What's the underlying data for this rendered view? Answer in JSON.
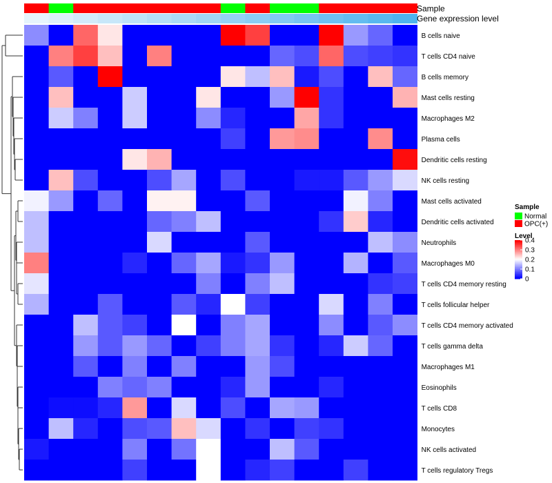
{
  "chart_data": {
    "type": "heatmap",
    "annotation_titles": {
      "sample": "Sample",
      "expression": "Gene expression level"
    },
    "sample_groups": [
      "OPC(+)",
      "Normal",
      "OPC(+)",
      "OPC(+)",
      "OPC(+)",
      "OPC(+)",
      "OPC(+)",
      "OPC(+)",
      "Normal",
      "OPC(+)",
      "Normal",
      "Normal",
      "OPC(+)",
      "OPC(+)",
      "OPC(+)",
      "OPC(+)"
    ],
    "expression_levels": [
      0.05,
      0.1,
      0.15,
      0.2,
      0.25,
      0.3,
      0.35,
      0.4,
      0.45,
      0.5,
      0.55,
      0.6,
      0.65,
      0.7,
      0.75,
      0.8
    ],
    "rows": [
      "B cells naive",
      "T cells CD4 naive",
      "B cells memory",
      "Mast cells resting",
      "Macrophages M2",
      "Plasma cells",
      "Dendritic cells resting",
      "NK cells resting",
      "Mast cells activated",
      "Dendritic cells activated",
      "Neutrophils",
      "Macrophages M0",
      "T cells CD4 memory resting",
      "T cells follicular helper",
      "T cells CD4 memory activated",
      "T cells gamma delta",
      "Macrophages M1",
      "Eosinophils",
      "T cells CD8",
      "Monocytes",
      "NK cells activated",
      "T cells regulatory  Tregs"
    ],
    "values": [
      [
        0.11,
        0.0,
        0.32,
        0.22,
        0.0,
        0.0,
        0.0,
        0.0,
        0.4,
        0.35,
        0.0,
        0.0,
        0.4,
        0.12,
        0.08,
        0.0
      ],
      [
        0.0,
        0.3,
        0.35,
        0.25,
        0.0,
        0.3,
        0.0,
        0.0,
        0.0,
        0.0,
        0.08,
        0.06,
        0.32,
        0.06,
        0.05,
        0.04
      ],
      [
        0.0,
        0.07,
        0.0,
        0.4,
        0.0,
        0.0,
        0.0,
        0.0,
        0.22,
        0.15,
        0.25,
        0.02,
        0.06,
        0.0,
        0.25,
        0.08
      ],
      [
        0.0,
        0.25,
        0.0,
        0.0,
        0.16,
        0.0,
        0.0,
        0.22,
        0.0,
        0.0,
        0.12,
        0.4,
        0.04,
        0.0,
        0.0,
        0.26
      ],
      [
        0.0,
        0.16,
        0.1,
        0.0,
        0.16,
        0.0,
        0.0,
        0.11,
        0.03,
        0.0,
        0.0,
        0.27,
        0.04,
        0.0,
        0.0,
        0.0
      ],
      [
        0.0,
        0.0,
        0.0,
        0.0,
        0.0,
        0.0,
        0.0,
        0.0,
        0.05,
        0.0,
        0.28,
        0.29,
        0.0,
        0.0,
        0.29,
        0.0
      ],
      [
        0.0,
        0.0,
        0.0,
        0.0,
        0.22,
        0.26,
        0.0,
        0.0,
        0.0,
        0.0,
        0.0,
        0.0,
        0.0,
        0.0,
        0.0,
        0.39
      ],
      [
        0.0,
        0.25,
        0.06,
        0.0,
        0.0,
        0.06,
        0.13,
        0.0,
        0.06,
        0.0,
        0.0,
        0.02,
        0.02,
        0.07,
        0.12,
        0.17
      ],
      [
        0.19,
        0.12,
        0.0,
        0.08,
        0.0,
        0.21,
        0.21,
        0.0,
        0.0,
        0.07,
        0.0,
        0.0,
        0.0,
        0.19,
        0.1,
        0.0
      ],
      [
        0.15,
        0.0,
        0.0,
        0.0,
        0.0,
        0.08,
        0.1,
        0.15,
        0.0,
        0.0,
        0.0,
        0.0,
        0.04,
        0.24,
        0.03,
        0.0
      ],
      [
        0.15,
        0.0,
        0.0,
        0.0,
        0.0,
        0.17,
        0.0,
        0.0,
        0.0,
        0.07,
        0.0,
        0.0,
        0.0,
        0.0,
        0.15,
        0.11
      ],
      [
        0.3,
        0.0,
        0.0,
        0.0,
        0.03,
        0.0,
        0.08,
        0.13,
        0.02,
        0.04,
        0.12,
        0.0,
        0.0,
        0.14,
        0.0,
        0.07
      ],
      [
        0.18,
        0.0,
        0.0,
        0.0,
        0.0,
        0.0,
        0.0,
        0.1,
        0.0,
        0.1,
        0.15,
        0.0,
        0.0,
        0.0,
        0.04,
        0.05
      ],
      [
        0.14,
        0.0,
        0.0,
        0.07,
        0.0,
        0.0,
        0.07,
        0.03,
        0.2,
        0.05,
        0.0,
        0.0,
        0.17,
        0.0,
        0.1,
        0.0
      ],
      [
        0.0,
        0.0,
        0.15,
        0.07,
        0.05,
        0.0,
        0.2,
        0.0,
        0.1,
        0.13,
        0.0,
        0.0,
        0.11,
        0.0,
        0.07,
        0.11
      ],
      [
        0.0,
        0.0,
        0.12,
        0.07,
        0.12,
        0.08,
        0.0,
        0.05,
        0.1,
        0.13,
        0.04,
        0.0,
        0.03,
        0.16,
        0.08,
        0.0
      ],
      [
        0.0,
        0.0,
        0.07,
        0.0,
        0.1,
        0.0,
        0.1,
        0.0,
        0.0,
        0.12,
        0.06,
        0.0,
        0.0,
        0.0,
        0.0,
        0.0
      ],
      [
        0.0,
        0.0,
        0.0,
        0.1,
        0.08,
        0.1,
        0.0,
        0.0,
        0.03,
        0.12,
        0.0,
        0.0,
        0.03,
        0.0,
        0.0,
        0.0
      ],
      [
        0.0,
        0.01,
        0.01,
        0.03,
        0.28,
        0.0,
        0.17,
        0.0,
        0.06,
        0.0,
        0.13,
        0.12,
        0.0,
        0.0,
        0.0,
        0.0
      ],
      [
        0.0,
        0.15,
        0.03,
        0.0,
        0.06,
        0.07,
        0.25,
        0.17,
        0.0,
        0.04,
        0.0,
        0.05,
        0.04,
        0.0,
        0.0,
        0.0
      ],
      [
        0.02,
        0.0,
        0.0,
        0.0,
        0.1,
        0.0,
        0.09,
        0.2,
        0.0,
        0.0,
        0.15,
        0.07,
        0.0,
        0.0,
        0.0,
        0.0
      ],
      [
        0.0,
        0.0,
        0.0,
        0.0,
        0.05,
        0.0,
        0.0,
        0.2,
        0.0,
        0.03,
        0.05,
        0.0,
        0.0,
        0.05,
        0.0,
        0.0
      ]
    ],
    "legends": {
      "sample": {
        "title": "Sample",
        "items": [
          {
            "label": "Normal",
            "color": "#00ff00"
          },
          {
            "label": "OPC(+)",
            "color": "#ff0000"
          }
        ]
      },
      "level": {
        "title": "Level",
        "ticks": [
          "0",
          "0.1",
          "0.2",
          "0.3",
          "0.4"
        ],
        "tick_values": [
          0,
          0.1,
          0.2,
          0.3,
          0.4
        ],
        "range": [
          0,
          0.4
        ]
      }
    },
    "colors": {
      "low": "#0000ff",
      "mid": "#ffffff",
      "high": "#ff0000",
      "expr_low": "#e6f4fc",
      "expr_high": "#4fb3ee",
      "dendrogram": "#333333"
    }
  }
}
